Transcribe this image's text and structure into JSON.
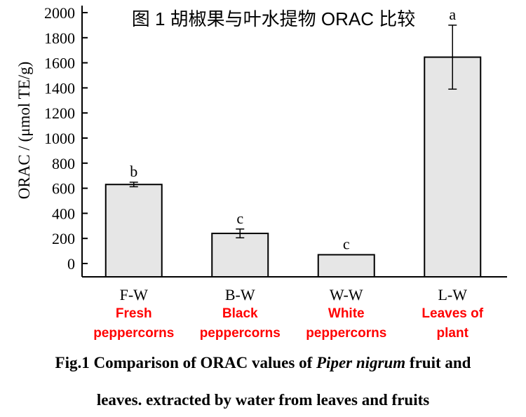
{
  "chart_data": {
    "type": "bar",
    "title": "图 1 胡椒果与叶水提物 ORAC 比较",
    "ylabel": "ORAC / (μmol TE/g)",
    "xlabel": "",
    "ylim": [
      -100,
      2050
    ],
    "yticks": [
      0,
      200,
      400,
      600,
      800,
      1000,
      1200,
      1400,
      1600,
      1800,
      2000
    ],
    "categories": [
      "F-W",
      "B-W",
      "W-W",
      "L-W"
    ],
    "values": [
      630,
      240,
      70,
      1645
    ],
    "errors": [
      18,
      35,
      0,
      255
    ],
    "significance_letters": [
      "b",
      "c",
      "c",
      "a"
    ],
    "english_labels": [
      [
        "Fresh",
        "peppercorns"
      ],
      [
        "Black",
        "peppercorns"
      ],
      [
        "White",
        "peppercorns"
      ],
      [
        "Leaves of",
        "plant"
      ]
    ],
    "colors": {
      "bar_fill": "#e6e6e6",
      "bar_stroke": "#000000",
      "label_red": "#ff0000"
    },
    "grid": false
  },
  "caption": {
    "line1_prefix": "Fig.1 Comparison of ORAC values of ",
    "line1_italic": "Piper nigrum",
    "line1_suffix": " fruit and",
    "line2": "leaves. extracted by water from leaves and fruits"
  }
}
